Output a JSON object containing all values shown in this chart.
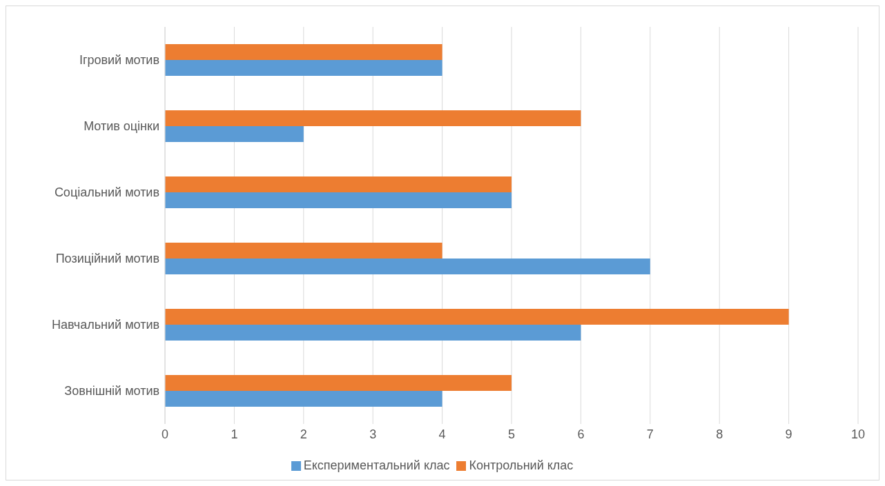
{
  "chart_data": {
    "type": "bar",
    "orientation": "horizontal",
    "categories": [
      "Ігровий мотив",
      "Мотив оцінки",
      "Соціальний мотив",
      "Позиційний мотив",
      "Навчальний мотив",
      "Зовнішній мотив"
    ],
    "series": [
      {
        "name": "Контрольний клас",
        "color": "#ed7d31",
        "values": [
          4,
          6,
          5,
          4,
          9,
          5
        ]
      },
      {
        "name": "Експериментальний клас",
        "color": "#5b9bd5",
        "values": [
          4,
          2,
          5,
          7,
          6,
          4
        ]
      }
    ],
    "xlim": [
      0,
      10
    ],
    "xticks": [
      0,
      1,
      2,
      3,
      4,
      5,
      6,
      7,
      8,
      9,
      10
    ],
    "grid": "x",
    "legend": "bottom"
  }
}
